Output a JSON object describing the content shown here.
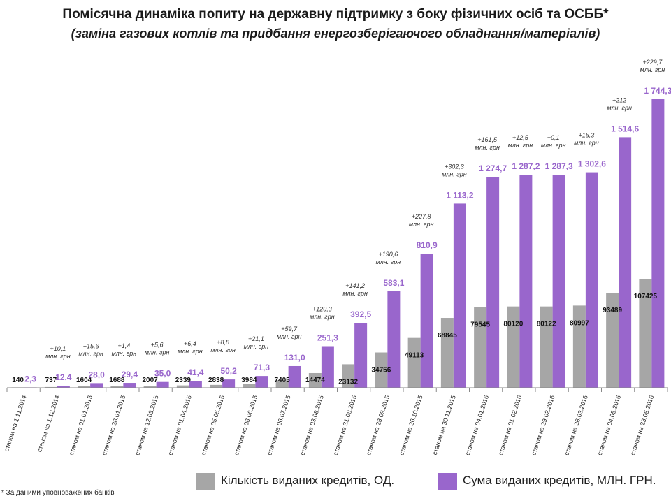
{
  "title": "Помісячна динаміка попиту на державну підтримку з боку фізичних осіб та ОСББ*",
  "subtitle": "(заміна газових котлів  та  придбання енергозберігаючого обладнання/матеріалів)",
  "footnote": "* За даними уповноважених банків",
  "colors": {
    "count": "#a6a6a6",
    "sum": "#9966cc",
    "increment_text": "#333333"
  },
  "chart_data": {
    "type": "bar",
    "title": "Помісячна динаміка попиту на державну підтримку з боку фізичних осіб та ОСББ*",
    "subtitle": "(заміна газових котлів  та  придбання енергозберігаючого обладнання/матеріалів)",
    "categories": [
      "станом на 1.11.2014",
      "станом на 1.12.2014",
      "станом на 01.01.2015",
      "станом на 28.01.2015",
      "станом на 12.03.2015",
      "станом на 01.04.2015",
      "станом на 05.05.2015",
      "станом на 08.06.2015",
      "станом на 06.07.2015",
      "станом на 03.08.2015",
      "станом на 31.08.2015",
      "станом на 28.09.2015",
      "станом на 26.10.2015",
      "станом на 30.11.2015",
      "станом на 04.01.2016",
      "станом на 01.02.2016",
      "станом на 29.02.2016",
      "станом на 28.03.2016",
      "станом на 04.05.2016",
      "станом на 23.05.2016"
    ],
    "series": [
      {
        "name": "Кількість виданих кредитів, ОД.",
        "values": [
          140,
          737,
          1604,
          1688,
          2007,
          2339,
          2838,
          3984,
          7405,
          14474,
          23132,
          34756,
          49113,
          68845,
          79545,
          80120,
          80122,
          80997,
          93489,
          107425
        ],
        "labels": [
          "140",
          "737",
          "1604",
          "1688",
          "2007",
          "2339",
          "2838",
          "3984",
          "7405",
          "14474",
          "23132",
          "34756",
          "49113",
          "68845",
          "79545",
          "80120",
          "80122",
          "80997",
          "93489",
          "107425"
        ]
      },
      {
        "name": "Сума виданих кредитів, МЛН. ГРН.",
        "values": [
          2.3,
          12.4,
          28.0,
          29.4,
          35.0,
          41.4,
          50.2,
          71.3,
          131.0,
          251.3,
          392.5,
          583.1,
          810.9,
          1113.2,
          1274.7,
          1287.2,
          1287.3,
          1302.6,
          1514.6,
          1744.3
        ],
        "labels": [
          "2,3",
          "12,4",
          "28,0",
          "29,4",
          "35,0",
          "41,4",
          "50,2",
          "71,3",
          "131,0",
          "251,3",
          "392,5",
          "583,1",
          "810,9",
          "1 113,2",
          "1 274,7",
          "1 287,2",
          "1 287,3",
          "1 302,6",
          "1 514,6",
          "1 744,3"
        ]
      }
    ],
    "increments": [
      null,
      "+10,1",
      "+15,6",
      "+1,4",
      "+5,6",
      "+6,4",
      "+8,8",
      "+21,1",
      "+59,7",
      "+120,3",
      "+141,2",
      "+190,6",
      "+227,8",
      "+302,3",
      "+161,5",
      "+12,5",
      "+0,1",
      "+15,3",
      "+212",
      "+229,7"
    ],
    "increment_unit": "млн. грн",
    "legend_position": "bottom",
    "grid": false
  }
}
